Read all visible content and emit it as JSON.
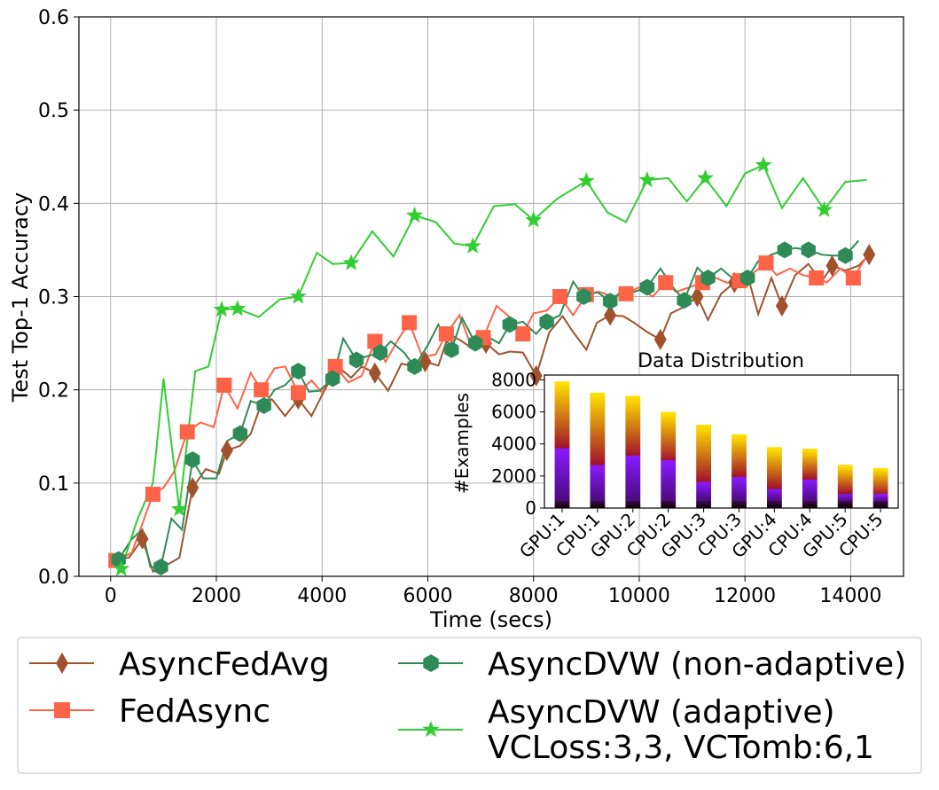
{
  "chart_data": {
    "type": "line",
    "xlabel": "Time (secs)",
    "ylabel": "Test Top-1 Accuracy",
    "xlim": [
      -600,
      15000
    ],
    "ylim": [
      0,
      0.6
    ],
    "xticks": [
      0,
      2000,
      4000,
      6000,
      8000,
      10000,
      12000,
      14000
    ],
    "yticks": [
      0.0,
      0.1,
      0.2,
      0.3,
      0.4,
      0.5,
      0.6
    ],
    "xtick_labels": [
      "0",
      "2000",
      "4000",
      "6000",
      "8000",
      "10000",
      "12000",
      "14000"
    ],
    "ytick_labels": [
      "0.0",
      "0.1",
      "0.2",
      "0.3",
      "0.4",
      "0.5",
      "0.6"
    ],
    "grid": true,
    "series": [
      {
        "name": "AsyncFedAvg",
        "color": "#a0522d",
        "marker": "diamond",
        "x": [
          100,
          350,
          600,
          800,
          1000,
          1300,
          1550,
          1800,
          2050,
          2200,
          2450,
          2650,
          2850,
          3050,
          3300,
          3550,
          3800,
          4050,
          4300,
          4550,
          4750,
          5000,
          5250,
          5500,
          5750,
          5950,
          6200,
          6400,
          6650,
          6850,
          7100,
          7350,
          7550,
          7800,
          8050,
          8300,
          8550,
          8750,
          9000,
          9200,
          9450,
          9700,
          9900,
          10150,
          10400,
          10600,
          10850,
          11100,
          11300,
          11550,
          11800,
          12050,
          12250,
          12500,
          12700,
          12950,
          13200,
          13450,
          13650,
          13900,
          14150,
          14350
        ],
        "y": [
          0.018,
          0.02,
          0.04,
          0.005,
          0.01,
          0.02,
          0.095,
          0.115,
          0.11,
          0.135,
          0.14,
          0.153,
          0.185,
          0.19,
          0.172,
          0.19,
          0.172,
          0.2,
          0.225,
          0.213,
          0.225,
          0.218,
          0.199,
          0.228,
          0.225,
          0.23,
          0.226,
          0.26,
          0.252,
          0.244,
          0.25,
          0.238,
          0.241,
          0.24,
          0.215,
          0.262,
          0.279,
          0.262,
          0.243,
          0.272,
          0.28,
          0.279,
          0.272,
          0.262,
          0.254,
          0.282,
          0.289,
          0.3,
          0.275,
          0.303,
          0.315,
          0.323,
          0.281,
          0.32,
          0.29,
          0.323,
          0.335,
          0.316,
          0.333,
          0.328,
          0.333,
          0.345
        ],
        "marker_indices": [
          2,
          6,
          9,
          15,
          21,
          25,
          30,
          34,
          40,
          44,
          47,
          50,
          54,
          58,
          61
        ]
      },
      {
        "name": "FedAsync",
        "color": "#ff6347",
        "marker": "square",
        "x": [
          100,
          400,
          800,
          1000,
          1200,
          1450,
          1700,
          1950,
          2150,
          2400,
          2650,
          2850,
          3100,
          3300,
          3550,
          3800,
          4000,
          4250,
          4500,
          4750,
          5000,
          5200,
          5450,
          5650,
          5900,
          6150,
          6350,
          6600,
          6800,
          7050,
          7300,
          7550,
          7800,
          8000,
          8250,
          8500,
          8750,
          9000,
          9250,
          9500,
          9750,
          10000,
          10250,
          10500,
          10700,
          10950,
          11200,
          11450,
          11650,
          11900,
          12150,
          12400,
          12600,
          12850,
          13100,
          13350,
          13550,
          13800,
          14050,
          14300
        ],
        "y": [
          0.017,
          0.025,
          0.088,
          0.095,
          0.112,
          0.155,
          0.165,
          0.16,
          0.205,
          0.18,
          0.218,
          0.2,
          0.223,
          0.225,
          0.197,
          0.21,
          0.197,
          0.225,
          0.208,
          0.215,
          0.252,
          0.23,
          0.255,
          0.272,
          0.235,
          0.238,
          0.26,
          0.28,
          0.25,
          0.256,
          0.29,
          0.278,
          0.26,
          0.282,
          0.285,
          0.3,
          0.28,
          0.302,
          0.305,
          0.3,
          0.303,
          0.31,
          0.3,
          0.315,
          0.305,
          0.31,
          0.315,
          0.32,
          0.315,
          0.317,
          0.325,
          0.336,
          0.323,
          0.33,
          0.323,
          0.32,
          0.315,
          0.33,
          0.32,
          0.343
        ],
        "marker_indices": [
          0,
          2,
          5,
          8,
          11,
          14,
          17,
          20,
          23,
          26,
          29,
          32,
          35,
          37,
          40,
          43,
          46,
          49,
          51,
          55,
          58
        ]
      },
      {
        "name": "AsyncDVW (non-adaptive)",
        "color": "#2e8b57",
        "marker": "hexagon",
        "x": [
          150,
          400,
          600,
          750,
          950,
          1150,
          1350,
          1550,
          1750,
          2000,
          2200,
          2450,
          2650,
          2900,
          3100,
          3300,
          3550,
          3750,
          3950,
          4200,
          4400,
          4650,
          4850,
          5100,
          5300,
          5550,
          5750,
          6000,
          6200,
          6450,
          6650,
          6900,
          7100,
          7350,
          7550,
          7800,
          8050,
          8250,
          8500,
          8750,
          8950,
          9200,
          9450,
          9650,
          9900,
          10150,
          10400,
          10650,
          10850,
          11100,
          11300,
          11550,
          11800,
          12050,
          12250,
          12500,
          12750,
          12950,
          13200,
          13450,
          13650,
          13900,
          14150
        ],
        "y": [
          0.018,
          0.04,
          0.05,
          0.01,
          0.01,
          0.062,
          0.05,
          0.125,
          0.105,
          0.105,
          0.145,
          0.153,
          0.188,
          0.183,
          0.2,
          0.205,
          0.22,
          0.198,
          0.199,
          0.212,
          0.255,
          0.232,
          0.236,
          0.24,
          0.252,
          0.24,
          0.225,
          0.248,
          0.27,
          0.243,
          0.277,
          0.25,
          0.258,
          0.25,
          0.27,
          0.273,
          0.26,
          0.273,
          0.28,
          0.316,
          0.3,
          0.305,
          0.295,
          0.305,
          0.305,
          0.31,
          0.33,
          0.309,
          0.296,
          0.331,
          0.32,
          0.33,
          0.318,
          0.32,
          0.338,
          0.345,
          0.35,
          0.352,
          0.35,
          0.345,
          0.344,
          0.344,
          0.36
        ],
        "marker_indices": [
          0,
          4,
          7,
          11,
          13,
          16,
          19,
          21,
          23,
          26,
          29,
          31,
          34,
          37,
          40,
          42,
          45,
          48,
          50,
          53,
          56,
          58,
          61
        ]
      },
      {
        "name": "AsyncDVW (adaptive)\nVCLoss:3,3, VCTomb:6,1",
        "color": "#32cd32",
        "marker": "star",
        "x": [
          200,
          500,
          800,
          1000,
          1300,
          1600,
          1850,
          2100,
          2400,
          2800,
          3200,
          3550,
          3900,
          4200,
          4550,
          4950,
          5350,
          5750,
          6150,
          6500,
          6850,
          7250,
          7650,
          8000,
          8450,
          9000,
          9400,
          9750,
          10150,
          10550,
          10900,
          11250,
          11650,
          12000,
          12350,
          12700,
          13100,
          13500,
          13900,
          14300
        ],
        "y": [
          0.008,
          0.06,
          0.1,
          0.212,
          0.072,
          0.22,
          0.225,
          0.286,
          0.287,
          0.278,
          0.297,
          0.3,
          0.347,
          0.335,
          0.336,
          0.37,
          0.343,
          0.387,
          0.38,
          0.357,
          0.354,
          0.397,
          0.399,
          0.382,
          0.405,
          0.424,
          0.39,
          0.38,
          0.425,
          0.427,
          0.402,
          0.427,
          0.397,
          0.432,
          0.441,
          0.395,
          0.427,
          0.393,
          0.423,
          0.425
        ]
      }
    ],
    "legend": {
      "placement": "below",
      "entries": [
        "AsyncFedAvg",
        "FedAsync",
        "AsyncDVW (non-adaptive)",
        "AsyncDVW (adaptive)",
        "VCLoss:3,3, VCTomb:6,1"
      ]
    },
    "inset": {
      "type": "bar",
      "title": "Data Distribution",
      "ylabel": "#Examples",
      "categories": [
        "GPU:1",
        "CPU:1",
        "GPU:2",
        "CPU:2",
        "GPU:3",
        "CPU:3",
        "GPU:4",
        "CPU:4",
        "GPU:5",
        "CPU:5"
      ],
      "values": [
        7900,
        7200,
        7000,
        6000,
        5200,
        4600,
        3800,
        3700,
        2700,
        2500
      ],
      "purple_band_values": [
        3800,
        2800,
        3300,
        3000,
        1700,
        2000,
        1300,
        1900,
        1000,
        900
      ],
      "ylim": [
        0,
        8300
      ],
      "yticks": [
        0,
        2000,
        4000,
        6000,
        8000
      ],
      "ytick_labels": [
        "0",
        "2000",
        "4000",
        "6000",
        "8000"
      ]
    }
  }
}
